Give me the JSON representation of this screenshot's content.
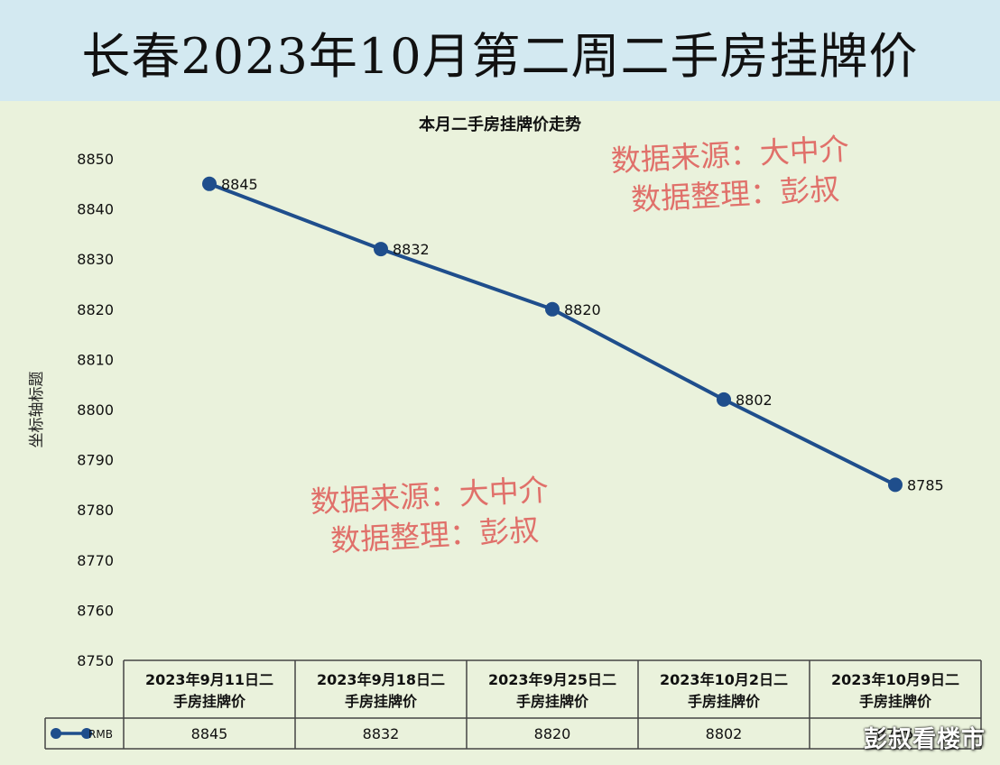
{
  "header": {
    "title": "长春2023年10月第二周二手房挂牌价"
  },
  "watermarks": {
    "line1": "数据来源：大中介",
    "line2": "数据整理：彭叔",
    "footer": "彭叔看楼市"
  },
  "chart_data": {
    "type": "line",
    "title": "本月二手房挂牌价走势",
    "xlabel": "",
    "ylabel": "坐标轴标题",
    "ylim": [
      8750,
      8850
    ],
    "yticks": [
      8850,
      8840,
      8830,
      8820,
      8810,
      8800,
      8790,
      8780,
      8770,
      8760,
      8750
    ],
    "grid": false,
    "categories": [
      "2023年9月11日二手房挂牌价",
      "2023年9月18日二手房挂牌价",
      "2023年9月25日二手房挂牌价",
      "2023年10月2日二手房挂牌价",
      "2023年10月9日二手房挂牌价"
    ],
    "series": [
      {
        "name": "RMB",
        "values": [
          8845,
          8832,
          8820,
          8802,
          8785
        ],
        "color": "#1f4e8c"
      }
    ],
    "data_table": true
  }
}
